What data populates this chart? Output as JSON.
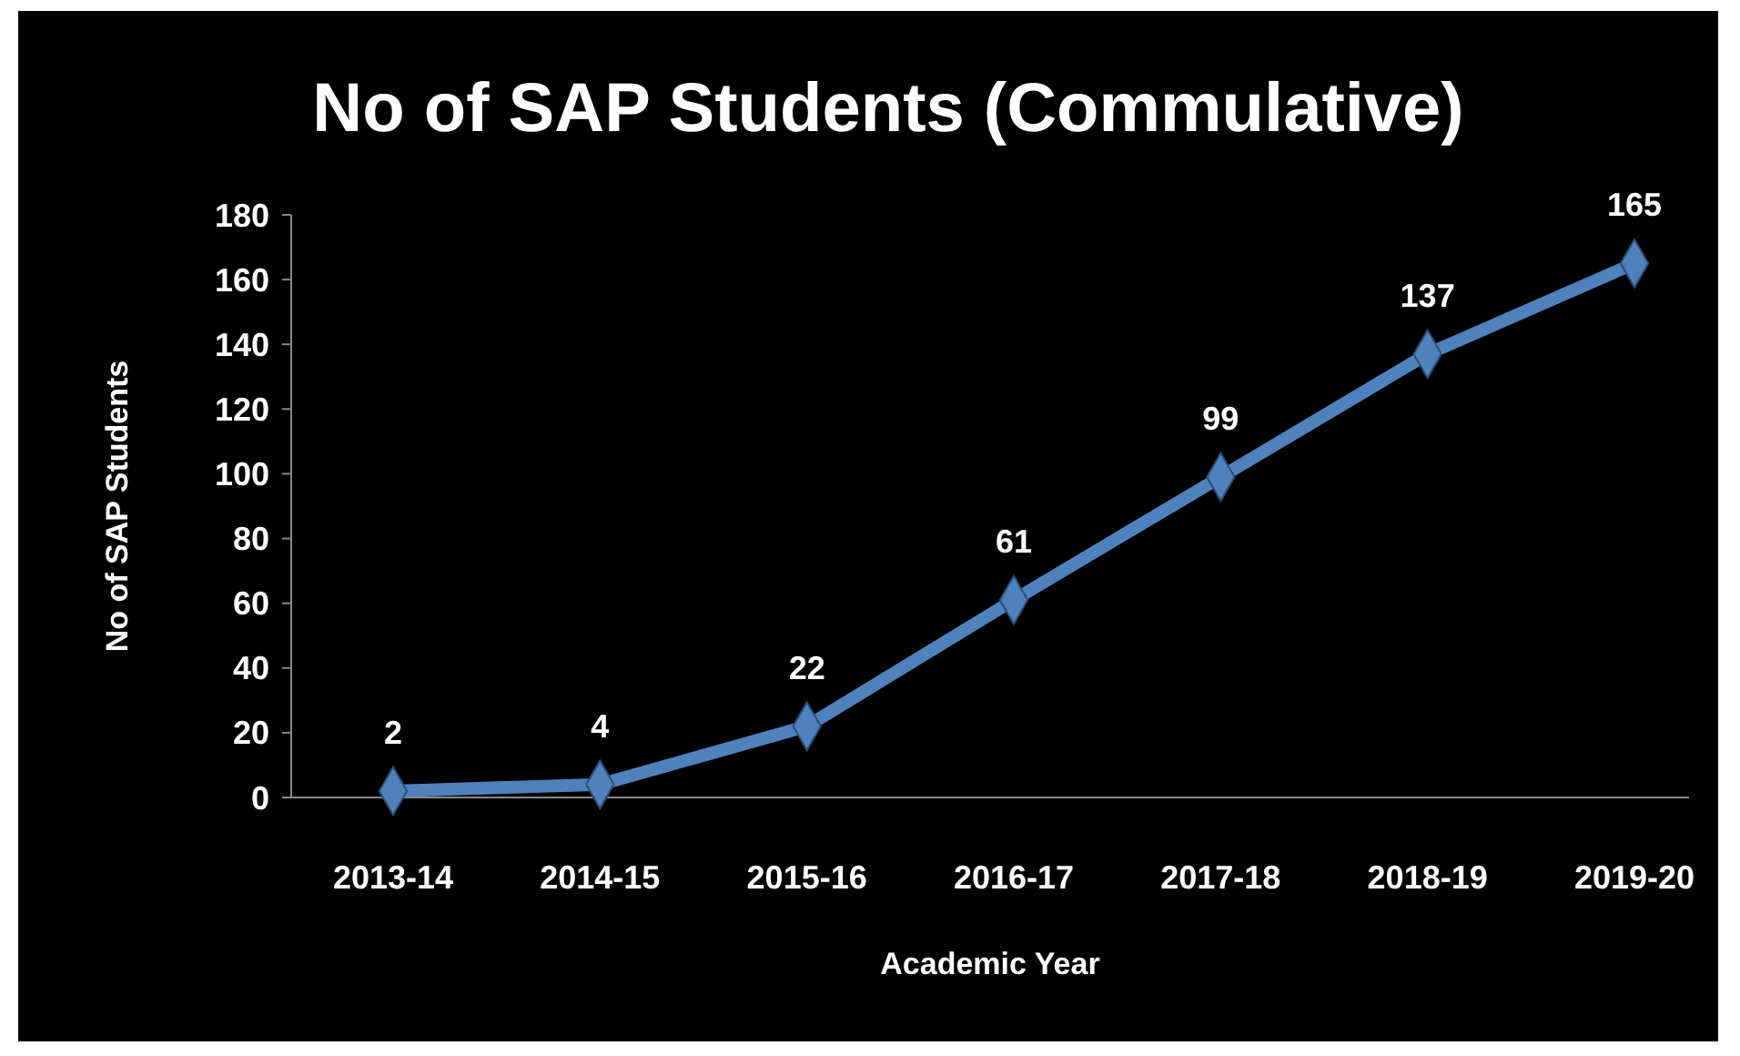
{
  "chart_data": {
    "type": "line",
    "title": "No of SAP Students (Commulative)",
    "xlabel": "Academic Year",
    "ylabel": "No of SAP Students",
    "categories": [
      "2013-14",
      "2014-15",
      "2015-16",
      "2016-17",
      "2017-18",
      "2018-19",
      "2019-20"
    ],
    "series": [
      {
        "color": "#4f81bd",
        "values": [
          2,
          4,
          22,
          61,
          99,
          137,
          165
        ]
      }
    ],
    "ylim": [
      0,
      180
    ],
    "yticks": [
      0,
      20,
      40,
      60,
      80,
      100,
      120,
      140,
      160,
      180
    ],
    "grid": false,
    "marker": "diamond",
    "line_style": "solid",
    "data_labels": true
  }
}
